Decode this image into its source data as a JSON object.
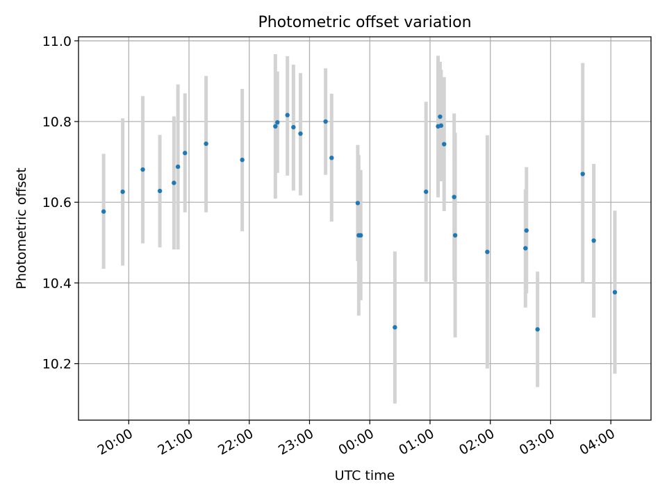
{
  "chart_data": {
    "type": "scatter",
    "title": "Photometric offset variation",
    "xlabel": "UTC time",
    "ylabel": "Photometric offset",
    "x_unit": "UTC time (hh:mm), across midnight",
    "xlim": [
      "19:10",
      "04:40"
    ],
    "ylim": [
      10.06,
      11.01
    ],
    "xticks": [
      "20:00",
      "21:00",
      "22:00",
      "23:00",
      "00:00",
      "01:00",
      "02:00",
      "03:00",
      "04:00"
    ],
    "yticks": [
      "10.2",
      "10.4",
      "10.6",
      "10.8",
      "11.0"
    ],
    "grid": true,
    "colors": {
      "point": "#1f77b4",
      "errorbar": "#d3d3d3",
      "grid": "#b0b0b0"
    },
    "points": [
      {
        "x": "19:35",
        "y": 10.577,
        "ylow": 10.435,
        "yhigh": 10.72
      },
      {
        "x": "19:54",
        "y": 10.626,
        "ylow": 10.443,
        "yhigh": 10.808
      },
      {
        "x": "20:14",
        "y": 10.681,
        "ylow": 10.498,
        "yhigh": 10.863
      },
      {
        "x": "20:31",
        "y": 10.628,
        "ylow": 10.488,
        "yhigh": 10.767
      },
      {
        "x": "20:45",
        "y": 10.648,
        "ylow": 10.483,
        "yhigh": 10.813
      },
      {
        "x": "20:49",
        "y": 10.688,
        "ylow": 10.483,
        "yhigh": 10.892
      },
      {
        "x": "20:56",
        "y": 10.722,
        "ylow": 10.575,
        "yhigh": 10.87
      },
      {
        "x": "21:17",
        "y": 10.745,
        "ylow": 10.575,
        "yhigh": 10.913
      },
      {
        "x": "21:53",
        "y": 10.705,
        "ylow": 10.528,
        "yhigh": 10.881
      },
      {
        "x": "22:26",
        "y": 10.788,
        "ylow": 10.609,
        "yhigh": 10.967
      },
      {
        "x": "22:28",
        "y": 10.798,
        "ylow": 10.673,
        "yhigh": 10.924
      },
      {
        "x": "22:38",
        "y": 10.816,
        "ylow": 10.666,
        "yhigh": 10.962
      },
      {
        "x": "22:44",
        "y": 10.786,
        "ylow": 10.629,
        "yhigh": 10.941
      },
      {
        "x": "22:51",
        "y": 10.77,
        "ylow": 10.617,
        "yhigh": 10.92
      },
      {
        "x": "23:16",
        "y": 10.8,
        "ylow": 10.668,
        "yhigh": 10.932
      },
      {
        "x": "23:22",
        "y": 10.71,
        "ylow": 10.552,
        "yhigh": 10.869
      },
      {
        "x": "23:48",
        "y": 10.598,
        "ylow": 10.454,
        "yhigh": 10.742
      },
      {
        "x": "23:49",
        "y": 10.518,
        "ylow": 10.319,
        "yhigh": 10.717
      },
      {
        "x": "23:51",
        "y": 10.518,
        "ylow": 10.357,
        "yhigh": 10.68
      },
      {
        "x": "00:25",
        "y": 10.29,
        "ylow": 10.101,
        "yhigh": 10.478
      },
      {
        "x": "00:56",
        "y": 10.626,
        "ylow": 10.403,
        "yhigh": 10.849
      },
      {
        "x": "01:08",
        "y": 10.788,
        "ylow": 10.612,
        "yhigh": 10.963
      },
      {
        "x": "01:10",
        "y": 10.812,
        "ylow": 10.676,
        "yhigh": 10.948
      },
      {
        "x": "01:11",
        "y": 10.79,
        "ylow": 10.652,
        "yhigh": 10.928
      },
      {
        "x": "01:14",
        "y": 10.744,
        "ylow": 10.578,
        "yhigh": 10.91
      },
      {
        "x": "01:24",
        "y": 10.613,
        "ylow": 10.406,
        "yhigh": 10.82
      },
      {
        "x": "01:25",
        "y": 10.518,
        "ylow": 10.265,
        "yhigh": 10.772
      },
      {
        "x": "01:57",
        "y": 10.477,
        "ylow": 10.188,
        "yhigh": 10.766
      },
      {
        "x": "02:35",
        "y": 10.486,
        "ylow": 10.339,
        "yhigh": 10.632
      },
      {
        "x": "02:36",
        "y": 10.53,
        "ylow": 10.374,
        "yhigh": 10.687
      },
      {
        "x": "02:47",
        "y": 10.285,
        "ylow": 10.142,
        "yhigh": 10.428
      },
      {
        "x": "03:32",
        "y": 10.67,
        "ylow": 10.4,
        "yhigh": 10.945
      },
      {
        "x": "03:43",
        "y": 10.505,
        "ylow": 10.314,
        "yhigh": 10.695
      },
      {
        "x": "04:04",
        "y": 10.377,
        "ylow": 10.175,
        "yhigh": 10.579
      }
    ]
  }
}
